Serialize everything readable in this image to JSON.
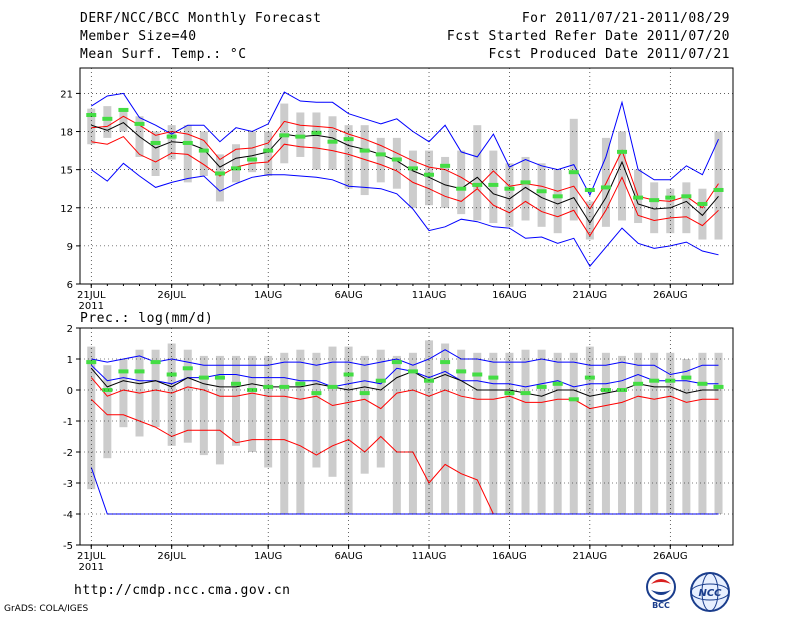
{
  "header": {
    "title": "DERF/NCC/BCC Monthly Forecast",
    "member_size": "Member Size=40",
    "variable": "Mean Surf. Temp.: °C",
    "period": "For 2011/07/21-2011/08/29",
    "started": "Fcst Started Refer Date 2011/07/20",
    "produced": "Fcst Produced Date 2011/07/21"
  },
  "footer": {
    "url": "http://cmdp.ncc.cma.gov.cn",
    "credit": "GrADS: COLA/IGES",
    "logo_left": "BCC",
    "logo_right": "NCC"
  },
  "colors": {
    "ensemble_mean": "#000000",
    "spread": "#ff0000",
    "envelope": "#0000ff",
    "box": "#cccccc",
    "median": "#44dd44"
  },
  "chart_data": [
    {
      "type": "line",
      "title": "Mean Surf. Temp.: °C",
      "ylim": [
        6,
        23
      ],
      "yticks": [
        6,
        9,
        12,
        15,
        18,
        21
      ],
      "xtick_labels": [
        "21JUL",
        "26JUL",
        "1AUG",
        "6AUG",
        "11AUG",
        "16AUG",
        "21AUG",
        "26AUG"
      ],
      "xtick_day_index": [
        0,
        5,
        11,
        16,
        21,
        26,
        31,
        36
      ],
      "year_label": "2011",
      "series": [
        {
          "name": "max",
          "values": [
            15.0,
            14.1,
            15.5,
            14.5,
            13.6,
            14.0,
            14.3,
            14.5,
            13.3,
            13.9,
            14.4,
            14.6,
            14.6,
            14.5,
            14.4,
            14.2,
            13.7,
            13.6,
            13.5,
            13.1,
            11.9,
            10.2,
            10.5,
            11.1,
            10.9,
            10.5,
            10.4,
            9.6,
            9.7,
            9.2,
            9.6,
            7.4,
            8.9,
            10.4,
            9.2,
            8.8,
            9.0,
            9.3,
            8.6,
            8.3
          ]
        },
        {
          "name": "p_hi",
          "values": [
            20.0,
            20.8,
            21.0,
            19.1,
            18.5,
            17.8,
            18.5,
            18.5,
            17.2,
            18.3,
            18.0,
            18.6,
            21.1,
            20.4,
            20.3,
            20.3,
            19.4,
            19.0,
            18.6,
            19.0,
            18.0,
            17.2,
            18.5,
            16.4,
            16.0,
            17.8,
            15.2,
            15.8,
            15.3,
            15.0,
            15.4,
            13.0,
            16.0,
            20.3,
            15.0,
            14.2,
            14.2,
            15.3,
            14.6,
            17.4
          ]
        },
        {
          "name": "mean_plus",
          "values": [
            18.3,
            18.4,
            19.2,
            18.5,
            17.7,
            18.0,
            17.8,
            17.3,
            15.8,
            16.6,
            16.7,
            17.1,
            18.8,
            18.5,
            18.4,
            18.3,
            17.8,
            17.4,
            16.9,
            16.3,
            15.7,
            15.2,
            15.0,
            14.4,
            13.6,
            14.9,
            13.7,
            13.9,
            13.7,
            13.3,
            13.7,
            11.9,
            13.9,
            16.5,
            12.9,
            12.6,
            12.5,
            12.9,
            12.0,
            13.9
          ]
        },
        {
          "name": "mean",
          "values": [
            18.5,
            18.1,
            18.7,
            17.6,
            16.7,
            17.2,
            17.1,
            16.6,
            15.2,
            15.9,
            16.1,
            16.4,
            17.8,
            17.6,
            17.7,
            17.5,
            16.9,
            16.6,
            16.2,
            15.7,
            14.9,
            14.4,
            13.8,
            13.5,
            14.4,
            13.1,
            12.7,
            13.6,
            12.8,
            12.3,
            12.8,
            10.8,
            12.8,
            15.6,
            12.3,
            11.9,
            12.0,
            12.5,
            11.4,
            12.9
          ]
        },
        {
          "name": "mean_minus",
          "values": [
            17.2,
            17.0,
            17.6,
            16.2,
            15.6,
            16.3,
            16.2,
            15.4,
            14.5,
            15.2,
            15.5,
            15.6,
            17.0,
            16.8,
            16.7,
            16.5,
            16.2,
            15.8,
            15.4,
            14.9,
            14.0,
            13.5,
            12.9,
            12.5,
            13.5,
            12.2,
            11.6,
            12.5,
            11.7,
            11.3,
            11.8,
            9.8,
            11.8,
            14.4,
            11.4,
            11.0,
            11.2,
            11.3,
            10.6,
            11.8
          ]
        }
      ],
      "boxes": {
        "low": [
          17.0,
          17.5,
          18.0,
          16.0,
          14.5,
          15.8,
          14.0,
          14.5,
          12.5,
          14.0,
          14.8,
          14.5,
          15.5,
          16.0,
          15.0,
          15.0,
          13.5,
          13.0,
          14.0,
          13.5,
          12.0,
          12.2,
          12.0,
          11.5,
          11.0,
          10.8,
          10.5,
          11.0,
          10.5,
          10.0,
          11.0,
          9.5,
          10.5,
          11.0,
          10.8,
          10.0,
          10.0,
          10.0,
          9.5,
          9.5
        ],
        "high": [
          19.8,
          20.0,
          19.8,
          19.2,
          18.0,
          18.5,
          18.5,
          18.0,
          16.2,
          17.0,
          18.0,
          18.0,
          20.2,
          19.5,
          19.5,
          19.2,
          18.5,
          18.5,
          17.5,
          17.5,
          16.5,
          16.5,
          16.0,
          16.5,
          18.5,
          16.5,
          15.5,
          16.0,
          15.5,
          15.0,
          19.0,
          12.5,
          17.5,
          18.0,
          15.0,
          14.0,
          13.5,
          14.0,
          13.5,
          18.0
        ],
        "median": [
          19.3,
          19.0,
          19.7,
          18.6,
          17.1,
          17.6,
          17.1,
          16.5,
          14.7,
          15.1,
          15.8,
          16.5,
          17.7,
          17.6,
          17.9,
          17.2,
          17.4,
          16.5,
          16.2,
          15.8,
          15.1,
          14.6,
          15.3,
          13.5,
          13.8,
          13.8,
          13.5,
          14.0,
          13.3,
          12.9,
          14.8,
          13.4,
          13.6,
          16.4,
          12.8,
          12.6,
          12.8,
          12.9,
          12.3,
          13.4
        ]
      }
    },
    {
      "type": "line",
      "title": "Prec.: log(mm/d)",
      "ylim": [
        -5,
        2
      ],
      "yticks": [
        -5,
        -4,
        -3,
        -2,
        -1,
        0,
        1,
        2
      ],
      "xtick_labels": [
        "21JUL",
        "26JUL",
        "1AUG",
        "6AUG",
        "11AUG",
        "16AUG",
        "21AUG",
        "26AUG"
      ],
      "xtick_day_index": [
        0,
        5,
        11,
        16,
        21,
        26,
        31,
        36
      ],
      "year_label": "2011",
      "series": [
        {
          "name": "max",
          "values": [
            1.0,
            0.9,
            1.0,
            1.1,
            0.9,
            1.0,
            0.9,
            0.8,
            0.8,
            0.8,
            0.8,
            0.8,
            0.9,
            0.9,
            0.8,
            0.9,
            0.9,
            0.8,
            0.9,
            1.0,
            0.8,
            1.0,
            1.3,
            1.0,
            1.0,
            0.9,
            0.9,
            0.9,
            1.0,
            0.9,
            0.9,
            0.8,
            0.8,
            0.9,
            0.8,
            0.8,
            0.5,
            0.6,
            0.8,
            0.8
          ]
        },
        {
          "name": "p_hi",
          "values": [
            0.8,
            0.3,
            0.4,
            0.3,
            0.3,
            0.2,
            0.4,
            0.4,
            0.5,
            0.5,
            0.4,
            0.4,
            0.4,
            0.3,
            0.3,
            0.1,
            0.2,
            0.3,
            0.2,
            0.7,
            0.6,
            0.4,
            0.6,
            0.3,
            0.3,
            0.2,
            0.2,
            0.1,
            0.2,
            0.3,
            0.1,
            0.2,
            0.2,
            0.3,
            0.5,
            0.3,
            0.3,
            0.3,
            0.2,
            0.2
          ]
        },
        {
          "name": "mean",
          "values": [
            0.7,
            0.1,
            0.3,
            0.2,
            0.3,
            0.1,
            0.4,
            0.2,
            0.1,
            0.1,
            0.2,
            0.1,
            0.1,
            0.1,
            0.2,
            0.1,
            0.0,
            0.1,
            0.0,
            0.4,
            0.6,
            0.3,
            0.5,
            0.3,
            0.0,
            0.0,
            0.0,
            -0.1,
            -0.2,
            0.0,
            0.0,
            -0.2,
            -0.1,
            0.0,
            0.2,
            0.1,
            0.1,
            -0.1,
            0.0,
            0.0
          ]
        },
        {
          "name": "mean_minus",
          "values": [
            0.4,
            -0.2,
            0.0,
            -0.1,
            0.0,
            -0.1,
            0.1,
            0.0,
            -0.2,
            -0.2,
            -0.1,
            -0.2,
            -0.2,
            -0.3,
            -0.2,
            -0.5,
            -0.4,
            -0.3,
            -0.6,
            -0.1,
            0.0,
            -0.2,
            0.0,
            -0.2,
            -0.3,
            -0.3,
            -0.2,
            -0.4,
            -0.4,
            -0.3,
            -0.3,
            -0.6,
            -0.5,
            -0.4,
            -0.2,
            -0.3,
            -0.2,
            -0.4,
            -0.3,
            -0.3
          ]
        },
        {
          "name": "min",
          "values": [
            -0.3,
            -0.8,
            -0.8,
            -1.0,
            -1.2,
            -1.5,
            -1.3,
            -1.3,
            -1.3,
            -1.7,
            -1.6,
            -1.6,
            -1.6,
            -1.8,
            -2.1,
            -1.8,
            -1.6,
            -2.0,
            -1.5,
            -2.0,
            -2.0,
            -3.0,
            -2.4,
            -2.7,
            -2.9,
            -4.0,
            -4.0,
            -4.0,
            -4.0,
            -4.0,
            -4.0,
            -4.0,
            -4.0,
            -4.0,
            -4.0,
            -4.0,
            -4.0,
            -4.0,
            -4.0,
            -4.0
          ]
        },
        {
          "name": "floor",
          "values": [
            -2.5,
            -4.0,
            -4.0,
            -4.0,
            -4.0,
            -4.0,
            -4.0,
            -4.0,
            -4.0,
            -4.0,
            -4.0,
            -4.0,
            -4.0,
            -4.0,
            -4.0,
            -4.0,
            -4.0,
            -4.0,
            -4.0,
            -4.0,
            -4.0,
            -4.0,
            -4.0,
            -4.0,
            -4.0,
            -4.0,
            -4.0,
            -4.0,
            -4.0,
            -4.0,
            -4.0,
            -4.0,
            -4.0,
            -4.0,
            -4.0,
            -4.0,
            -4.0,
            -4.0,
            -4.0,
            -4.0
          ]
        }
      ],
      "boxes": {
        "low": [
          -3.2,
          -2.2,
          -1.2,
          -1.5,
          -1.2,
          -1.8,
          -1.7,
          -2.1,
          -2.4,
          -1.8,
          -2.0,
          -2.5,
          -4.0,
          -4.0,
          -2.5,
          -2.8,
          -4.0,
          -2.7,
          -2.5,
          -4.0,
          -4.0,
          -4.0,
          -4.0,
          -4.0,
          -4.0,
          -4.0,
          -4.0,
          -4.0,
          -4.0,
          -4.0,
          -4.0,
          -4.0,
          -4.0,
          -4.0,
          -4.0,
          -4.0,
          -4.0,
          -4.0,
          -4.0,
          -4.0
        ],
        "high": [
          1.4,
          0.8,
          1.0,
          1.3,
          1.3,
          1.5,
          1.3,
          1.1,
          1.1,
          1.1,
          1.1,
          1.1,
          1.2,
          1.3,
          1.2,
          1.4,
          1.4,
          1.1,
          1.3,
          1.1,
          1.2,
          1.6,
          1.5,
          1.3,
          1.2,
          1.2,
          1.2,
          1.3,
          1.3,
          1.2,
          1.2,
          1.4,
          1.2,
          1.1,
          1.2,
          1.2,
          1.2,
          1.0,
          1.2,
          1.2
        ],
        "median": [
          0.9,
          0.0,
          0.6,
          0.6,
          0.9,
          0.5,
          0.7,
          0.4,
          0.4,
          0.2,
          0.0,
          0.1,
          0.1,
          0.2,
          -0.1,
          0.1,
          0.5,
          -0.1,
          0.3,
          0.9,
          0.6,
          0.3,
          0.9,
          0.6,
          0.5,
          0.4,
          -0.1,
          -0.1,
          0.1,
          0.2,
          -0.3,
          0.4,
          0.0,
          0.0,
          0.2,
          0.3,
          0.3,
          0.4,
          0.2,
          0.1
        ]
      }
    }
  ]
}
